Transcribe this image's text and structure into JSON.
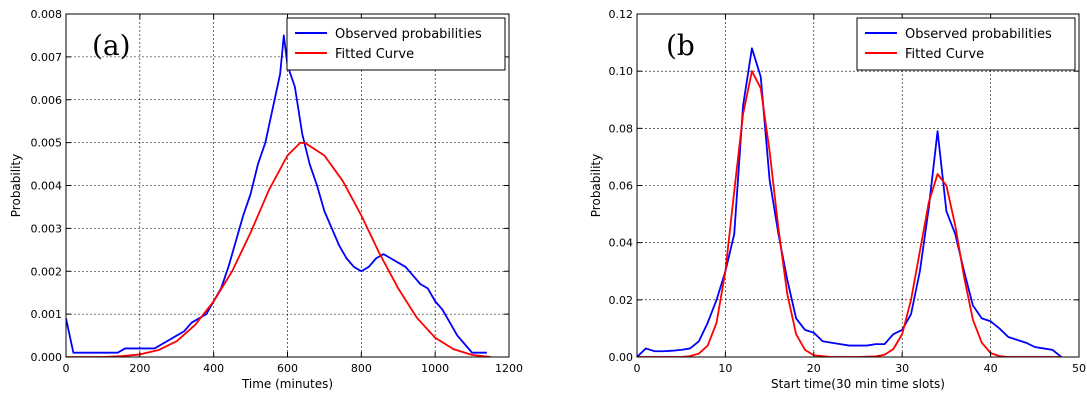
{
  "chart_data": [
    {
      "type": "line",
      "panel_label": "(a)",
      "title": "",
      "xlabel": "Time (minutes)",
      "ylabel": "Probability",
      "xlim": [
        0,
        1200
      ],
      "ylim": [
        0,
        0.008
      ],
      "xticks": [
        0,
        200,
        400,
        600,
        800,
        1000,
        1200
      ],
      "xtick_labels": [
        "0",
        "200",
        "400",
        "600",
        "800",
        "1000",
        "1200"
      ],
      "yticks": [
        0,
        0.001,
        0.002,
        0.003,
        0.004,
        0.005,
        0.006,
        0.007,
        0.008
      ],
      "ytick_labels": [
        "0.000",
        "0.001",
        "0.002",
        "0.003",
        "0.004",
        "0.005",
        "0.006",
        "0.007",
        "0.008"
      ],
      "grid": true,
      "legend_position": "top-right",
      "series": [
        {
          "name": "Observed probabilities",
          "color": "#0000ff",
          "x": [
            0,
            20,
            40,
            60,
            80,
            100,
            120,
            140,
            160,
            180,
            200,
            220,
            240,
            260,
            280,
            300,
            320,
            340,
            360,
            380,
            400,
            420,
            440,
            460,
            480,
            500,
            520,
            540,
            560,
            580,
            590,
            600,
            620,
            640,
            660,
            680,
            700,
            720,
            740,
            760,
            780,
            800,
            820,
            840,
            860,
            880,
            900,
            920,
            940,
            960,
            980,
            1000,
            1020,
            1040,
            1060,
            1080,
            1100,
            1120,
            1140
          ],
          "y": [
            0.0009,
            0.0001,
            0.0001,
            0.0001,
            0.0001,
            0.0001,
            0.0001,
            0.0001,
            0.0002,
            0.0002,
            0.0002,
            0.0002,
            0.0002,
            0.0003,
            0.0004,
            0.0005,
            0.0006,
            0.0008,
            0.0009,
            0.001,
            0.0013,
            0.0016,
            0.0021,
            0.0027,
            0.0033,
            0.0038,
            0.0045,
            0.005,
            0.0058,
            0.0066,
            0.0075,
            0.0068,
            0.0063,
            0.0052,
            0.0045,
            0.004,
            0.0034,
            0.003,
            0.0026,
            0.0023,
            0.0021,
            0.002,
            0.0021,
            0.0023,
            0.0024,
            0.0023,
            0.0022,
            0.0021,
            0.0019,
            0.0017,
            0.0016,
            0.0013,
            0.0011,
            0.0008,
            0.0005,
            0.0003,
            0.0001,
            0.0001,
            0.0001
          ]
        },
        {
          "name": "Fitted Curve",
          "color": "#ff0000",
          "x": [
            0,
            100,
            150,
            200,
            250,
            300,
            350,
            400,
            450,
            500,
            550,
            600,
            635,
            650,
            700,
            750,
            800,
            850,
            900,
            950,
            1000,
            1050,
            1100,
            1150
          ],
          "y": [
            0,
            0,
            2e-05,
            6e-05,
            0.00016,
            0.00037,
            0.00075,
            0.0013,
            0.002,
            0.0029,
            0.0039,
            0.0047,
            0.005,
            0.00498,
            0.0047,
            0.0041,
            0.0033,
            0.0024,
            0.0016,
            0.00092,
            0.00045,
            0.00018,
            5e-05,
            0
          ]
        }
      ]
    },
    {
      "type": "line",
      "panel_label": "(b",
      "title": "",
      "xlabel": "Start time(30 min time slots)",
      "ylabel": "Probability",
      "xlim": [
        0,
        50
      ],
      "ylim": [
        0,
        0.12
      ],
      "xticks": [
        0,
        10,
        20,
        30,
        40,
        50
      ],
      "xtick_labels": [
        "0",
        "10",
        "20",
        "30",
        "40",
        "50"
      ],
      "yticks": [
        0,
        0.02,
        0.04,
        0.06,
        0.08,
        0.1,
        0.12
      ],
      "ytick_labels": [
        "0.00",
        "0.02",
        "0.04",
        "0.06",
        "0.08",
        "0.10",
        "0.12"
      ],
      "grid": true,
      "legend_position": "top-right",
      "series": [
        {
          "name": "Observed probabilities",
          "color": "#0000ff",
          "x": [
            0,
            1,
            2,
            3,
            4,
            5,
            6,
            7,
            8,
            9,
            10,
            11,
            12,
            13,
            14,
            15,
            16,
            17,
            18,
            19,
            20,
            21,
            22,
            23,
            24,
            25,
            26,
            27,
            28,
            29,
            30,
            31,
            32,
            33,
            34,
            35,
            36,
            37,
            38,
            39,
            40,
            41,
            42,
            43,
            44,
            45,
            46,
            47,
            48
          ],
          "y": [
            0.0,
            0.003,
            0.002,
            0.002,
            0.0022,
            0.0025,
            0.003,
            0.0055,
            0.012,
            0.02,
            0.03,
            0.043,
            0.088,
            0.108,
            0.098,
            0.062,
            0.043,
            0.027,
            0.0135,
            0.0095,
            0.0085,
            0.0055,
            0.005,
            0.0045,
            0.004,
            0.004,
            0.004,
            0.0045,
            0.0045,
            0.008,
            0.0095,
            0.015,
            0.03,
            0.052,
            0.079,
            0.051,
            0.043,
            0.03,
            0.018,
            0.0135,
            0.0125,
            0.01,
            0.007,
            0.006,
            0.005,
            0.0035,
            0.003,
            0.0025,
            0.0
          ]
        },
        {
          "name": "Fitted Curve",
          "color": "#ff0000",
          "x": [
            0,
            5,
            6,
            7,
            8,
            9,
            10,
            11,
            12,
            13,
            14,
            15,
            16,
            17,
            18,
            19,
            20,
            22,
            25,
            27,
            28,
            29,
            30,
            31,
            32,
            33,
            34,
            35,
            36,
            37,
            38,
            39,
            40,
            41,
            42,
            45,
            48
          ],
          "y": [
            0,
            0,
            0.0003,
            0.0012,
            0.004,
            0.012,
            0.03,
            0.058,
            0.085,
            0.1,
            0.094,
            0.072,
            0.045,
            0.022,
            0.008,
            0.0025,
            0.0006,
            0,
            0,
            0.0002,
            0.0008,
            0.0028,
            0.008,
            0.02,
            0.037,
            0.054,
            0.064,
            0.06,
            0.046,
            0.028,
            0.013,
            0.005,
            0.0014,
            0.0003,
            0,
            0,
            0
          ]
        }
      ]
    }
  ]
}
